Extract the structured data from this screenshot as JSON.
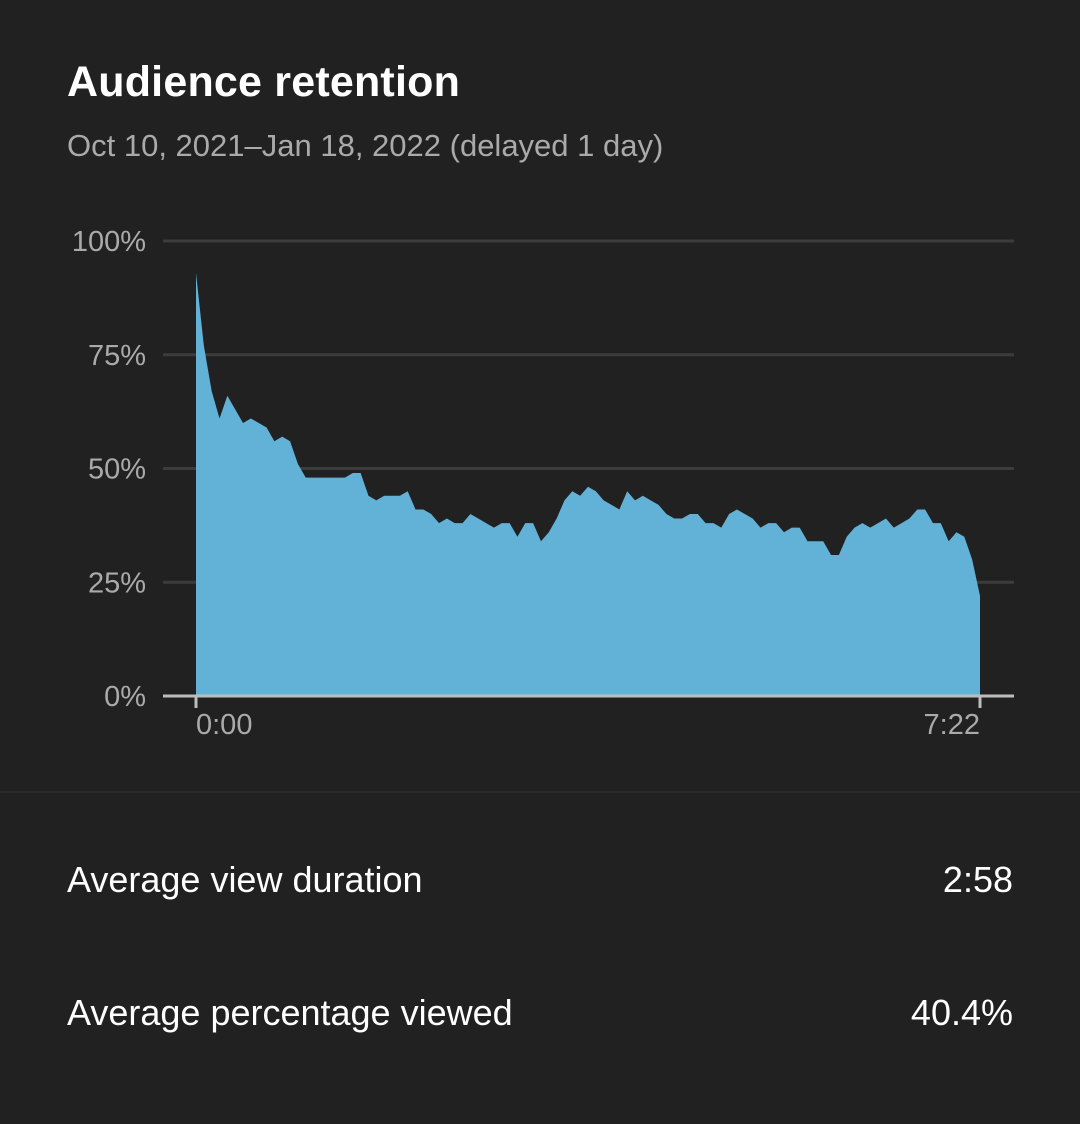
{
  "card": {
    "title": "Audience retention",
    "subtitle": "Oct 10, 2021–Jan 18, 2022 (delayed 1 day)"
  },
  "chart_data": {
    "type": "area",
    "title": "Audience retention",
    "xlabel": "",
    "ylabel": "",
    "ylim": [
      0,
      100
    ],
    "y_ticks": [
      "100%",
      "75%",
      "50%",
      "25%",
      "0%"
    ],
    "y_tick_values": [
      100,
      75,
      50,
      25,
      0
    ],
    "x_ticks": [
      "0:00",
      "7:22"
    ],
    "x_range_seconds": [
      0,
      442
    ],
    "grid": true,
    "fill_color": "#62b1d6",
    "series": [
      {
        "values": [
          93,
          77,
          67,
          61,
          66,
          63,
          60,
          61,
          60,
          59,
          56,
          57,
          56,
          51,
          48,
          48,
          48,
          48,
          48,
          48,
          49,
          49,
          44,
          43,
          44,
          44,
          44,
          45,
          41,
          41,
          40,
          38,
          39,
          38,
          38,
          40,
          39,
          38,
          37,
          38,
          38,
          35,
          38,
          38,
          34,
          36,
          39,
          43,
          45,
          44,
          46,
          45,
          43,
          42,
          41,
          45,
          43,
          44,
          43,
          42,
          40,
          39,
          39,
          40,
          40,
          38,
          38,
          37,
          40,
          41,
          40,
          39,
          37,
          38,
          38,
          36,
          37,
          37,
          34,
          34,
          34,
          31,
          31,
          35,
          37,
          38,
          37,
          38,
          39,
          37,
          38,
          39,
          41,
          41,
          38,
          38,
          34,
          36,
          35,
          30,
          22
        ]
      }
    ]
  },
  "metrics": [
    {
      "label": "Average view duration",
      "value": "2:58"
    },
    {
      "label": "Average percentage viewed",
      "value": "40.4%"
    }
  ]
}
